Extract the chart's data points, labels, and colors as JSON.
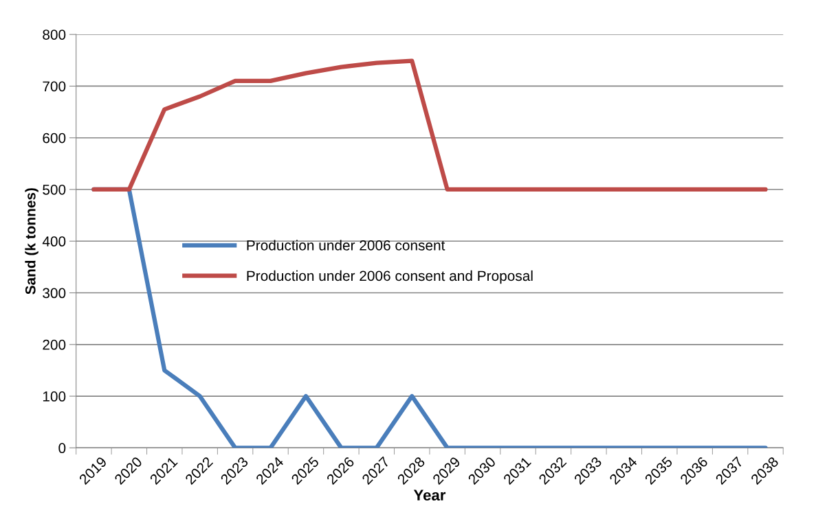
{
  "chart_data": {
    "type": "line",
    "xlabel": "Year",
    "ylabel": "Sand (k tonnes)",
    "categories": [
      "2019",
      "2020",
      "2021",
      "2022",
      "2023",
      "2024",
      "2025",
      "2026",
      "2027",
      "2028",
      "2029",
      "2030",
      "2031",
      "2032",
      "2033",
      "2034",
      "2035",
      "2036",
      "2037",
      "2038"
    ],
    "series": [
      {
        "name": "Production under 2006 consent",
        "color": "#4a7ebb",
        "values": [
          500,
          500,
          150,
          100,
          0,
          0,
          100,
          0,
          0,
          100,
          0,
          0,
          0,
          0,
          0,
          0,
          0,
          0,
          0,
          0
        ]
      },
      {
        "name": "Production under 2006 consent and Proposal",
        "color": "#be4b48",
        "values": [
          500,
          500,
          655,
          680,
          710,
          710,
          725,
          737,
          745,
          749,
          500,
          500,
          500,
          500,
          500,
          500,
          500,
          500,
          500,
          500
        ]
      }
    ],
    "ylim": [
      0,
      800
    ],
    "yticks": [
      0,
      100,
      200,
      300,
      400,
      500,
      600,
      700,
      800
    ],
    "grid": "y",
    "legend": "center",
    "marker": "none",
    "line_style": "solid"
  }
}
